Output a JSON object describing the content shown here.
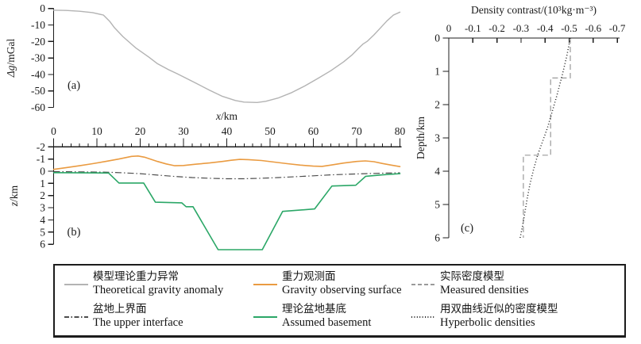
{
  "figure": {
    "panels": {
      "a": {
        "label": "(a)",
        "ylabel": "Δg/mGal",
        "yticks": [
          0,
          -10,
          -20,
          -30,
          -40,
          -50,
          -60
        ]
      },
      "b": {
        "label": "(b)",
        "ylabel": "z/km",
        "xlabel": "x/km",
        "yticks": [
          -2,
          -1,
          0,
          1,
          2,
          3,
          4,
          5,
          6
        ],
        "xticks": [
          0,
          10,
          20,
          30,
          40,
          50,
          60,
          70,
          80
        ],
        "x_minor_step": 2
      },
      "c": {
        "label": "(c)",
        "title": "Density contrast/(10³kg·m⁻³)",
        "ylabel": "Depth/km",
        "xticks": [
          "0",
          "-0.1",
          "-0.2",
          "-0.3",
          "-0.4",
          "-0.5",
          "-0.6",
          "-0.7"
        ],
        "yticks": [
          0,
          1,
          2,
          3,
          4,
          5,
          6
        ]
      }
    }
  },
  "chart_data": [
    {
      "type": "line",
      "panel": "a",
      "xlabel": "x/km",
      "ylabel": "Δg/mGal",
      "xlim": [
        0,
        80
      ],
      "ylim": [
        -60,
        0
      ],
      "series": [
        {
          "name": "Theoretical gravity anomaly",
          "color": "#b3b3b3",
          "width": 1.4,
          "dash": "",
          "points": [
            [
              0,
              -1
            ],
            [
              3,
              -1.2
            ],
            [
              6,
              -1.7
            ],
            [
              9,
              -2.5
            ],
            [
              11.5,
              -4
            ],
            [
              13,
              -8
            ],
            [
              14,
              -11.5
            ],
            [
              16,
              -17
            ],
            [
              19,
              -24
            ],
            [
              22,
              -29.5
            ],
            [
              24,
              -33.5
            ],
            [
              26.5,
              -37
            ],
            [
              28.5,
              -39.5
            ],
            [
              30,
              -41.5
            ],
            [
              33,
              -45.5
            ],
            [
              36,
              -49.5
            ],
            [
              39,
              -53.3
            ],
            [
              42,
              -55.8
            ],
            [
              44,
              -56.8
            ],
            [
              47,
              -57
            ],
            [
              49,
              -56.3
            ],
            [
              52,
              -54.2
            ],
            [
              55,
              -51
            ],
            [
              58,
              -47
            ],
            [
              61,
              -42.5
            ],
            [
              64,
              -37.8
            ],
            [
              67,
              -32.3
            ],
            [
              69,
              -28
            ],
            [
              70.5,
              -24
            ],
            [
              71.5,
              -21.5
            ],
            [
              72.5,
              -19.8
            ],
            [
              74,
              -16
            ],
            [
              75.5,
              -11.8
            ],
            [
              77,
              -7.5
            ],
            [
              78.5,
              -4
            ],
            [
              80,
              -2.2
            ]
          ]
        }
      ]
    },
    {
      "type": "line",
      "panel": "b",
      "xlabel": "x/km",
      "ylabel": "z/km",
      "xlim": [
        0,
        80
      ],
      "ylim": [
        6,
        -2
      ],
      "series": [
        {
          "name": "Gravity observing surface",
          "color": "#ea9b41",
          "width": 1.6,
          "dash": "",
          "points": [
            [
              0,
              -0.15
            ],
            [
              3,
              -0.3
            ],
            [
              6,
              -0.45
            ],
            [
              9,
              -0.62
            ],
            [
              12,
              -0.8
            ],
            [
              15,
              -1.0
            ],
            [
              18,
              -1.22
            ],
            [
              19.5,
              -1.25
            ],
            [
              21,
              -1.15
            ],
            [
              24,
              -0.8
            ],
            [
              26,
              -0.6
            ],
            [
              28,
              -0.45
            ],
            [
              30,
              -0.47
            ],
            [
              33,
              -0.58
            ],
            [
              36,
              -0.68
            ],
            [
              39,
              -0.8
            ],
            [
              41,
              -0.9
            ],
            [
              43,
              -0.97
            ],
            [
              45,
              -0.95
            ],
            [
              48,
              -0.88
            ],
            [
              51,
              -0.75
            ],
            [
              54,
              -0.62
            ],
            [
              57,
              -0.5
            ],
            [
              60,
              -0.42
            ],
            [
              62,
              -0.4
            ],
            [
              64,
              -0.5
            ],
            [
              67,
              -0.67
            ],
            [
              70,
              -0.8
            ],
            [
              72,
              -0.85
            ],
            [
              74,
              -0.78
            ],
            [
              76,
              -0.63
            ],
            [
              78,
              -0.5
            ],
            [
              80,
              -0.38
            ]
          ]
        },
        {
          "name": "The upper interface",
          "color": "#4d4d4d",
          "width": 1.2,
          "dash": "8 3 1.5 3",
          "points": [
            [
              0,
              0.03
            ],
            [
              6,
              0.05
            ],
            [
              12,
              0.08
            ],
            [
              16,
              0.13
            ],
            [
              20,
              0.2
            ],
            [
              24,
              0.32
            ],
            [
              28,
              0.43
            ],
            [
              32,
              0.52
            ],
            [
              36,
              0.58
            ],
            [
              40,
              0.62
            ],
            [
              44,
              0.62
            ],
            [
              48,
              0.58
            ],
            [
              52,
              0.52
            ],
            [
              56,
              0.45
            ],
            [
              60,
              0.38
            ],
            [
              64,
              0.3
            ],
            [
              68,
              0.25
            ],
            [
              72,
              0.2
            ],
            [
              76,
              0.16
            ],
            [
              80,
              0.13
            ]
          ]
        },
        {
          "name": "Assumed basement",
          "color": "#2ba767",
          "width": 1.6,
          "dash": "",
          "points": [
            [
              0,
              0.12
            ],
            [
              12.7,
              0.15
            ],
            [
              15.1,
              0.97
            ],
            [
              20.8,
              0.97
            ],
            [
              23.5,
              2.55
            ],
            [
              29.6,
              2.6
            ],
            [
              30.6,
              2.92
            ],
            [
              32.2,
              2.92
            ],
            [
              38,
              6.45
            ],
            [
              48.2,
              6.45
            ],
            [
              52.9,
              3.3
            ],
            [
              60.3,
              3.1
            ],
            [
              64.3,
              1.22
            ],
            [
              69.8,
              1.15
            ],
            [
              72.1,
              0.42
            ],
            [
              76,
              0.3
            ],
            [
              80,
              0.2
            ]
          ]
        }
      ]
    },
    {
      "type": "line",
      "panel": "c",
      "title": "Density contrast/(10³kg·m⁻³)",
      "ylabel": "Depth/km",
      "xlim": [
        0,
        -0.7
      ],
      "ylim": [
        6,
        0
      ],
      "series": [
        {
          "name": "Measured densities",
          "color": "#9a9a9a",
          "width": 1.2,
          "dash": "7 4",
          "points": [
            [
              -0.505,
              0
            ],
            [
              -0.505,
              1.2
            ],
            [
              -0.423,
              1.2
            ],
            [
              -0.423,
              3.52
            ],
            [
              -0.31,
              3.52
            ],
            [
              -0.31,
              6.0
            ]
          ]
        },
        {
          "name": "Hyperbolic densities",
          "color": "#222222",
          "width": 1.5,
          "dash": "1 2.6",
          "points": [
            [
              -0.505,
              0
            ],
            [
              -0.49,
              0.55
            ],
            [
              -0.472,
              1.1
            ],
            [
              -0.45,
              1.7
            ],
            [
              -0.43,
              2.2
            ],
            [
              -0.41,
              2.7
            ],
            [
              -0.39,
              3.1
            ],
            [
              -0.37,
              3.5
            ],
            [
              -0.352,
              3.95
            ],
            [
              -0.337,
              4.4
            ],
            [
              -0.325,
              4.85
            ],
            [
              -0.315,
              5.3
            ],
            [
              -0.305,
              5.7
            ],
            [
              -0.295,
              6.05
            ]
          ]
        }
      ]
    }
  ],
  "legend": {
    "items": [
      {
        "zh": "模型理论重力异常",
        "en": "Theoretical gravity anomaly",
        "color": "#b3b3b3",
        "dash": ""
      },
      {
        "zh": "重力观测面",
        "en": "Gravity observing surface",
        "color": "#ea9b41",
        "dash": ""
      },
      {
        "zh": "实际密度模型",
        "en": "Measured densities",
        "color": "#9a9a9a",
        "dash": "5 3"
      },
      {
        "zh": "盆地上界面",
        "en": "The upper interface",
        "color": "#4d4d4d",
        "dash": "6 2.5 1.5 2.5"
      },
      {
        "zh": "理论盆地基底",
        "en": "Assumed basement",
        "color": "#2ba767",
        "dash": ""
      },
      {
        "zh": "用双曲线近似的密度模型",
        "en": "Hyperbolic densities",
        "color": "#222222",
        "dash": "1 2.4"
      }
    ]
  }
}
